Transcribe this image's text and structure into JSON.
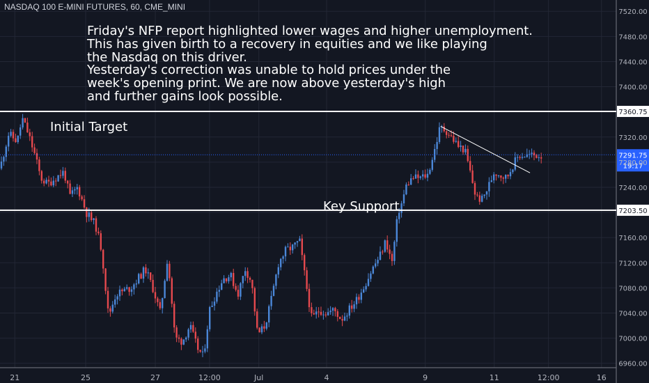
{
  "header": {
    "symbol_title": "NASDAQ 100 E-MINI FUTURES, 60, CME_MINI"
  },
  "annotation": {
    "text": "Friday's NFP report highlighted lower wages and higher unemployment.\nThis has given birth to a recovery in equities and we like playing\nthe Nasdaq on this driver.\nYesterday's correction was unable to hold prices under the\nweek's opening print. We are now above yesterday's high\nand further gains look possible."
  },
  "chart_data": {
    "type": "candlestick",
    "theme": {
      "background": "#131722",
      "up_color": "#4b87d8",
      "down_color": "#e5494e",
      "grid_color": "#232735",
      "text_color": "#b2b5be",
      "level_line_color": "#ffffff",
      "last_price_color": "#2962ff"
    },
    "x_axis_labels": [
      "21",
      "25",
      "27",
      "12:00",
      "Jul",
      "4",
      "9",
      "11",
      "12:00",
      "16"
    ],
    "y_axis": {
      "range": [
        6953,
        7538
      ],
      "ticks": [
        7520,
        7480,
        7440,
        7400,
        7360,
        7320,
        7280,
        7240,
        7200,
        7160,
        7120,
        7080,
        7040,
        7000,
        6960
      ],
      "tick_labels": [
        "7520.00",
        "7480.00",
        "7440.00",
        "7400.00",
        "7360.00",
        "7320.00",
        "7280.00",
        "7240.00",
        "7200.00",
        "7160.00",
        "7120.00",
        "7080.00",
        "7040.00",
        "7000.00",
        "6960.00"
      ]
    },
    "horizontal_levels": [
      {
        "name": "Initial Target",
        "value": 7360.75,
        "label": "7360.75"
      },
      {
        "name": "Key Support",
        "value": 7203.5,
        "label": "7203.50"
      }
    ],
    "last_price": {
      "value": 7291.75,
      "label": "7291.75",
      "countdown": "19:17"
    },
    "trendline": {
      "from": [
        0.715,
        7337
      ],
      "to": [
        0.86,
        7263
      ]
    },
    "price_path": [
      [
        0.0,
        7270
      ],
      [
        0.014,
        7325
      ],
      [
        0.028,
        7313
      ],
      [
        0.036,
        7350
      ],
      [
        0.046,
        7325
      ],
      [
        0.057,
        7290
      ],
      [
        0.066,
        7255
      ],
      [
        0.077,
        7245
      ],
      [
        0.09,
        7255
      ],
      [
        0.104,
        7265
      ],
      [
        0.113,
        7225
      ],
      [
        0.126,
        7240
      ],
      [
        0.14,
        7200
      ],
      [
        0.155,
        7180
      ],
      [
        0.165,
        7140
      ],
      [
        0.176,
        7035
      ],
      [
        0.188,
        7070
      ],
      [
        0.2,
        7075
      ],
      [
        0.212,
        7080
      ],
      [
        0.224,
        7095
      ],
      [
        0.236,
        7110
      ],
      [
        0.248,
        7080
      ],
      [
        0.26,
        7040
      ],
      [
        0.272,
        7130
      ],
      [
        0.284,
        7000
      ],
      [
        0.296,
        6995
      ],
      [
        0.308,
        7020
      ],
      [
        0.32,
        6985
      ],
      [
        0.33,
        6970
      ],
      [
        0.34,
        7045
      ],
      [
        0.35,
        7070
      ],
      [
        0.362,
        7095
      ],
      [
        0.374,
        7100
      ],
      [
        0.386,
        7070
      ],
      [
        0.398,
        7110
      ],
      [
        0.408,
        7090
      ],
      [
        0.418,
        7005
      ],
      [
        0.43,
        7020
      ],
      [
        0.44,
        7060
      ],
      [
        0.452,
        7120
      ],
      [
        0.464,
        7140
      ],
      [
        0.476,
        7145
      ],
      [
        0.486,
        7155
      ],
      [
        0.496,
        7090
      ],
      [
        0.506,
        7030
      ],
      [
        0.518,
        7045
      ],
      [
        0.53,
        7040
      ],
      [
        0.542,
        7045
      ],
      [
        0.554,
        7030
      ],
      [
        0.566,
        7045
      ],
      [
        0.578,
        7060
      ],
      [
        0.592,
        7085
      ],
      [
        0.604,
        7110
      ],
      [
        0.616,
        7130
      ],
      [
        0.626,
        7155
      ],
      [
        0.636,
        7120
      ],
      [
        0.646,
        7200
      ],
      [
        0.652,
        7215
      ],
      [
        0.66,
        7245
      ],
      [
        0.67,
        7255
      ],
      [
        0.682,
        7255
      ],
      [
        0.694,
        7260
      ],
      [
        0.704,
        7295
      ],
      [
        0.714,
        7335
      ],
      [
        0.724,
        7330
      ],
      [
        0.734,
        7318
      ],
      [
        0.744,
        7305
      ],
      [
        0.754,
        7300
      ],
      [
        0.764,
        7260
      ],
      [
        0.772,
        7225
      ],
      [
        0.782,
        7220
      ],
      [
        0.792,
        7240
      ],
      [
        0.802,
        7265
      ],
      [
        0.812,
        7260
      ],
      [
        0.822,
        7255
      ],
      [
        0.832,
        7275
      ],
      [
        0.842,
        7291
      ]
    ]
  },
  "labels": {
    "initial_target": "Initial Target",
    "key_support": "Key Support"
  }
}
